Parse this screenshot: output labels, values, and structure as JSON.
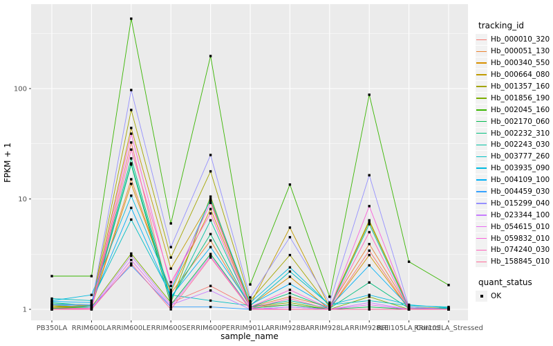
{
  "figure": {
    "bg_color": "#FFFFFF",
    "panel_bg_color": "#EBEBEB",
    "grid_color": "#FFFFFF",
    "tick_label_color": "#4D4D4D",
    "point_color": "#000000"
  },
  "chart_data": {
    "type": "line",
    "title": "",
    "xlabel": "sample_name",
    "ylabel": "FPKM + 1",
    "y_scale": "log10",
    "y_ticks": [
      1,
      10,
      100
    ],
    "y_minor_ticks": [
      3.162,
      31.62,
      316.2
    ],
    "ylim": [
      0.95,
      580
    ],
    "grid": "on",
    "marker": "small-black-square",
    "legend": {
      "title": "tracking_id",
      "position": "right"
    },
    "quant_legend": {
      "title": "quant_status",
      "items": [
        {
          "label": "OK",
          "marker": "black-square"
        }
      ]
    },
    "categories": [
      "PB350LA",
      "RRIM600LA",
      "RRIM600LE",
      "RRIM600SE",
      "RRIM600PE",
      "RRIM901LA",
      "RRIM928BA",
      "RRIM928LA",
      "RRIM928LE",
      "RRII105LA_Control",
      "RRII105LA_Stressed"
    ],
    "series": [
      {
        "name": "Hb_000010_320",
        "color": "#F8766D",
        "values": [
          1.02,
          1.02,
          32.5,
          1.15,
          1.63,
          1.05,
          1.1,
          1.0,
          3.4,
          1.0,
          1.0
        ]
      },
      {
        "name": "Hb_000051_130",
        "color": "#EA8331",
        "values": [
          1.03,
          1.05,
          15.1,
          1.4,
          4.2,
          1.05,
          1.3,
          1.05,
          3.9,
          1.02,
          1.0
        ]
      },
      {
        "name": "Hb_000340_550",
        "color": "#D89000",
        "values": [
          1.05,
          1.05,
          13.7,
          1.45,
          8.1,
          1.08,
          1.97,
          1.0,
          3.1,
          1.0,
          1.0
        ]
      },
      {
        "name": "Hb_000664_080",
        "color": "#C09B00",
        "values": [
          1.05,
          1.08,
          44.0,
          2.34,
          9.6,
          1.1,
          5.5,
          1.05,
          6.2,
          1.05,
          1.02
        ]
      },
      {
        "name": "Hb_001357_160",
        "color": "#A3A500",
        "values": [
          1.05,
          1.1,
          64.0,
          2.95,
          17.8,
          1.2,
          3.1,
          1.05,
          6.4,
          1.05,
          1.0
        ]
      },
      {
        "name": "Hb_001856_190",
        "color": "#7CAE00",
        "values": [
          1.08,
          1.05,
          3.2,
          1.15,
          10.5,
          1.05,
          1.15,
          1.0,
          1.3,
          1.0,
          1.0
        ]
      },
      {
        "name": "Hb_002045_160",
        "color": "#39B600",
        "values": [
          2.0,
          2.0,
          430.0,
          6.0,
          197.0,
          1.68,
          13.5,
          1.3,
          88.0,
          2.7,
          1.66
        ]
      },
      {
        "name": "Hb_002170_060",
        "color": "#00BB4E",
        "values": [
          1.02,
          1.05,
          20.5,
          1.1,
          3.17,
          1.02,
          1.1,
          1.0,
          1.05,
          1.0,
          1.0
        ]
      },
      {
        "name": "Hb_002232_310",
        "color": "#00BF7D",
        "values": [
          1.12,
          1.1,
          23.3,
          1.25,
          4.8,
          1.05,
          1.4,
          1.02,
          1.75,
          1.02,
          1.0
        ]
      },
      {
        "name": "Hb_002243_030",
        "color": "#00C1A3",
        "values": [
          1.15,
          1.08,
          21.0,
          1.2,
          6.4,
          1.05,
          1.2,
          1.02,
          5.9,
          1.02,
          1.02
        ]
      },
      {
        "name": "Hb_003777_260",
        "color": "#00BFC4",
        "values": [
          1.25,
          1.2,
          6.5,
          1.35,
          1.2,
          1.08,
          2.2,
          1.1,
          1.2,
          1.08,
          1.05
        ]
      },
      {
        "name": "Hb_003935_090",
        "color": "#00BAE0",
        "values": [
          1.2,
          1.35,
          10.7,
          1.5,
          10.0,
          1.15,
          2.4,
          1.1,
          1.35,
          1.1,
          1.03
        ]
      },
      {
        "name": "Hb_004109_100",
        "color": "#00B0F6",
        "values": [
          1.18,
          1.15,
          8.3,
          1.3,
          3.66,
          1.1,
          1.7,
          1.05,
          2.5,
          1.05,
          1.0
        ]
      },
      {
        "name": "Hb_004459_030",
        "color": "#35A2FF",
        "values": [
          1.1,
          1.05,
          2.5,
          1.05,
          1.05,
          1.0,
          1.05,
          1.0,
          1.0,
          1.0,
          1.0
        ]
      },
      {
        "name": "Hb_015299_040",
        "color": "#9590FF",
        "values": [
          1.1,
          1.1,
          97.0,
          3.66,
          25.0,
          1.28,
          4.5,
          1.15,
          16.4,
          1.05,
          1.0
        ]
      },
      {
        "name": "Hb_023344_100",
        "color": "#C77CFF",
        "values": [
          1.0,
          1.02,
          3.05,
          1.1,
          1.48,
          1.0,
          1.05,
          1.0,
          1.15,
          1.0,
          1.0
        ]
      },
      {
        "name": "Hb_054615_010",
        "color": "#E76BF3",
        "values": [
          1.0,
          1.0,
          2.8,
          1.06,
          3.04,
          1.02,
          1.0,
          1.0,
          1.1,
          1.0,
          1.0
        ]
      },
      {
        "name": "Hb_059832_010",
        "color": "#FA62DB",
        "values": [
          1.0,
          1.02,
          39.0,
          1.63,
          9.2,
          1.05,
          1.5,
          1.02,
          8.6,
          1.02,
          1.0
        ]
      },
      {
        "name": "Hb_074240_030",
        "color": "#FF62BC",
        "values": [
          1.0,
          1.0,
          28.0,
          1.76,
          7.4,
          1.02,
          1.25,
          1.0,
          5.0,
          1.0,
          1.0
        ]
      },
      {
        "name": "Hb_158845_010",
        "color": "#FF6A98",
        "values": [
          1.0,
          1.0,
          2.6,
          1.0,
          2.95,
          1.0,
          1.0,
          1.0,
          1.0,
          1.0,
          1.0
        ]
      }
    ]
  }
}
